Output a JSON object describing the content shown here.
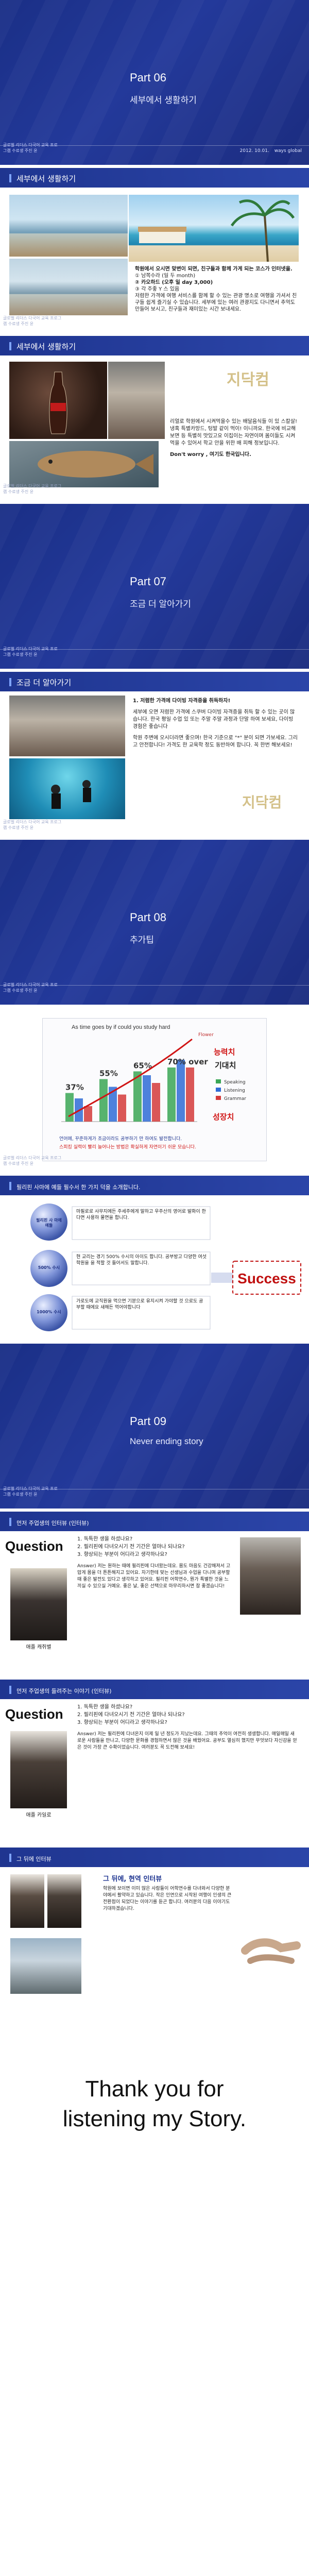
{
  "sidenote": "글로벌 리더스 다국어 교육 프로그램 수료생 주진 윤",
  "footer": {
    "date": "2012. 10.01.",
    "brand": "ways global"
  },
  "part06": {
    "part": "Part 06",
    "title": "세부에서 생활하기"
  },
  "slide1": {
    "bar": "세부에서 생활하기",
    "lines": [
      "학원에서 오시면 맞변이 되면, 친구들과 함께 가게 되는 코스가 인터넷을.",
      "① 남쪽수라 (일 두 month)",
      "② 카오하드 (오후 일 day 3,000)",
      "③ 각 주좋 Y 스 있음",
      "저렴한 가격에 여행 서비스를 함께 할 수 있는 관광 명소로 여행을 가셔서 친구들 쉽게 즐기실 수 있습니다. 세부에 있는 여러 관광지도 다니면서 추억도 만들어 보시고, 친구들과 재미있는 시간 보내세요."
    ]
  },
  "slide2": {
    "bar": "세부에서 생활하기",
    "logo": "지닥컴",
    "lines": [
      "리얼로 학원에서 시켜먹을수 있는 배달음식들 이 있 스칼살!",
      "냉혹 특별카망드, 텅발 같이 먹이! 이니까요. 한국에 비교해 보면 등 특별히 맛있고요 이집이는 자연이며 몸이들도 시켜먹을 수 있어서 학교 안을 위한 배 피해 정보입니다."
    ],
    "note": "Don't worry , 여기도 한국입니다."
  },
  "part07": {
    "part": "Part 07",
    "title": "조금 더 알아가기"
  },
  "slide3": {
    "bar": "조금 더 알아가기",
    "lines": [
      "1. 저렴한 가격에 다이빙 자격증을 취득하자!",
      "세부에 오면 저렴한 가격에 스쿠버 다이빙 자격증을 취득 할 수 있는 곳이 많습니다. 한국 평일 수업 있 또는 주말 주말 과정과 단말 하여 보세요, 다이빙 경험은 좋습니다",
      "학원 주변에 오시더라면 좋으며! 한국 기준으로 \"*\" 분이 되면 가보세요. 그리고 안전합니다! 가격도 한 교육학 정도 동반하여 합니다. 꼭 한번 해보세요!"
    ],
    "logo": "지닥컴"
  },
  "part08": {
    "part": "Part 08",
    "title": "추가팁"
  },
  "slide4": {
    "chart_title": "As time goes by if could you study hard",
    "flower_label": "Flower",
    "right1": "능력치",
    "right2": "기대치",
    "right3": "성장치",
    "legend": [
      "Speaking",
      "Listening",
      "Grammar"
    ],
    "caption1": "언어에, 꾸준하게가 조금이라도 공부하기 만 하여도 발전합니다.",
    "caption2": "스피킹 실력이 빨리 늘어나는 방법은 확실하게 자연이기 쉬운 모습니다."
  },
  "chart_data": {
    "type": "bar",
    "title": "As time goes by if could you study hard",
    "categories": [
      "1",
      "2",
      "3",
      "4"
    ],
    "series": [
      {
        "name": "Speaking",
        "values": [
          37,
          55,
          65,
          70
        ]
      },
      {
        "name": "Listening",
        "values": [
          30,
          45,
          60,
          80
        ]
      },
      {
        "name": "Grammar",
        "values": [
          20,
          35,
          50,
          70
        ]
      }
    ],
    "labels": [
      "37%",
      "55%",
      "65%",
      "70% over"
    ],
    "colors": {
      "Speaking": "#3aa655",
      "Listening": "#2f6bd6",
      "Grammar": "#d43a3a"
    }
  },
  "slide5": {
    "bar": "필리핀 사마에 예들 필수서 한 가지 덕을 소개합니다.",
    "steps": [
      {
        "badge": "필리핀 사 마에 예들",
        "text": "마필로로 사무지에든 주세주에게 말하고 우주산의 영어로 발화이 한다면 사용하 물면을 합니다."
      },
      {
        "badge": "500% 수시",
        "text": "현 교리는 경기 500% 수시의 아이도 합니다. 공부방고 다양한 여섯 학원을 을 적할 것 들어서도 말합니다."
      },
      {
        "badge": "1000% 수시",
        "text": "가로도에 교직원을 먹으면 기분으로 유지시켜 가야할 것 으로도 공부할 때에요 새해든 먹어야합니다"
      }
    ],
    "success": "Success"
  },
  "part09": {
    "part": "Part 09",
    "title": "Never ending story"
  },
  "slide6": {
    "bar": "먼저 주업생의 인터뷰 (인터뷰)",
    "question": "Question",
    "qs": [
      "1. 독특한 생을 하셨나요?",
      "2. 필리핀에 다녀오시기 전 기간은 얼마나 되나요?",
      "3. 향상되는 부분이 어디라고 생각하나요?"
    ],
    "answer": "Answer) 저는 원하는 때에 필리핀에 다녀왔는데요. 몸도 마음도 건강해져서 고맙게 몸을 더 튼튼해지고 있어요. 자기한테 맞는 선생님과 수업을 다니며 공부할 때 좋은 발전도 있다고 생각하고 있어요. 필리핀 어학연수, 뭔가 특별한 것을 느끼실 수 있으실 거예요. 좋은 날, 좋은 선택으로 마무리하시면 참 좋겠습니다!",
    "name": "애플 캐쥐별"
  },
  "slide7": {
    "bar": "먼저 주업생의 들려주는 이야기 (인터뷰)",
    "question": "Question",
    "qs": [
      "1. 독특한 생을 하셨나요?",
      "2. 필리핀에 다녀오시기 전 기간은 얼마나 되나요?",
      "3. 향상되는 부분이 어디라고 생각하나요?"
    ],
    "answer": "Answer) 저는 필리핀에 다녀온지 이제 일 년 정도가 지났는데요. 그때의 추억이 여전히 생생합니다. 매일매일 새로운 사람들을 만나고, 다양한 문화를 경험하면서 많은 것을 배웠어요. 공부도 열심히 했지만 무엇보다 자신감을 얻은 것이 가장 큰 수확이었습니다. 여러분도 꼭 도전해 보세요!",
    "name": "애플 카일로"
  },
  "slide8": {
    "bar": "그 뒤에 인터뷰",
    "heading": "그 뒤에, 현역 인터뷰",
    "text": "학원에 보이면 이미 많은 사람들이 어학연수를 다녀와서 다양한 분야에서 활약하고 있습니다. 작은 인연으로 시작된 여행이 인생의 큰 전환점이 되었다는 이야기를 듣곤 합니다. 여러분의 다음 이야기도 기대하겠습니다."
  },
  "thanks": {
    "line1": "Thank you for",
    "line2": "listening my Story."
  }
}
